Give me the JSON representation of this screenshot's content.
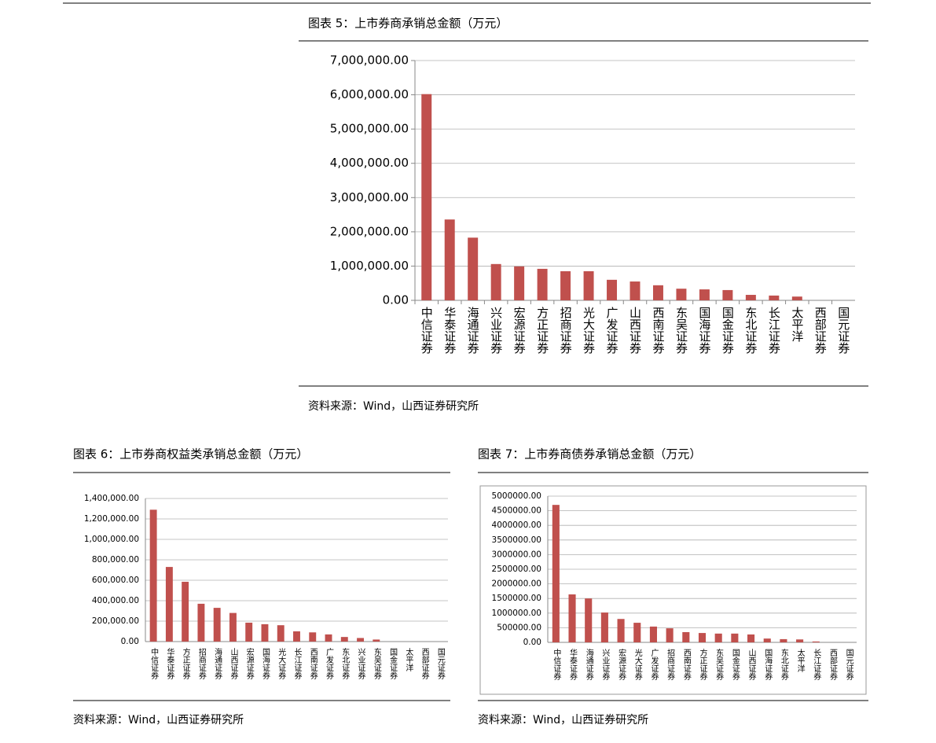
{
  "chart_data": [
    {
      "type": "bar",
      "title": "图表 5：上市券商承销总金额（万元）",
      "source": "资料来源：Wind，山西证券研究所",
      "color": "#c0504d",
      "categories": [
        "中信证券",
        "华泰证券",
        "海通证券",
        "兴业证券",
        "宏源证券",
        "方正证券",
        "招商证券",
        "光大证券",
        "广发证券",
        "山西证券",
        "西南证券",
        "东吴证券",
        "国海证券",
        "国金证券",
        "东北证券",
        "长江证券",
        "太平洋",
        "西部证券",
        "国元证券"
      ],
      "values": [
        6020000,
        2360000,
        1830000,
        1060000,
        990000,
        920000,
        850000,
        850000,
        600000,
        550000,
        440000,
        340000,
        320000,
        300000,
        160000,
        140000,
        110000,
        0,
        0
      ],
      "ylim": [
        0,
        7000000
      ],
      "yticks": [
        {
          "value": 0,
          "label": "0.00"
        },
        {
          "value": 1000000,
          "label": "1,000,000.00"
        },
        {
          "value": 2000000,
          "label": "2,000,000.00"
        },
        {
          "value": 3000000,
          "label": "3,000,000.00"
        },
        {
          "value": 4000000,
          "label": "4,000,000.00"
        },
        {
          "value": 5000000,
          "label": "5,000,000.00"
        },
        {
          "value": 6000000,
          "label": "6,000,000.00"
        },
        {
          "value": 7000000,
          "label": "7,000,000.00"
        }
      ],
      "grid": true
    },
    {
      "type": "bar",
      "title": "图表 6：上市券商权益类承销总金额（万元）",
      "source": "资料来源：Wind，山西证券研究所",
      "color": "#c0504d",
      "categories": [
        "中信证券",
        "华泰证券",
        "方正证券",
        "招商证券",
        "海通证券",
        "山西证券",
        "宏源证券",
        "国海证券",
        "光大证券",
        "长江证券",
        "西南证券",
        "广发证券",
        "东北证券",
        "兴业证券",
        "东吴证券",
        "国金证券",
        "太平洋",
        "西部证券",
        "国元证券"
      ],
      "values": [
        1290000,
        730000,
        585000,
        370000,
        330000,
        280000,
        185000,
        170000,
        160000,
        100000,
        90000,
        70000,
        45000,
        35000,
        20000,
        0,
        0,
        0,
        0
      ],
      "ylim": [
        0,
        1400000
      ],
      "yticks": [
        {
          "value": 0,
          "label": "0.00"
        },
        {
          "value": 200000,
          "label": "200,000.00"
        },
        {
          "value": 400000,
          "label": "400,000.00"
        },
        {
          "value": 600000,
          "label": "600,000.00"
        },
        {
          "value": 800000,
          "label": "800,000.00"
        },
        {
          "value": 1000000,
          "label": "1,000,000.00"
        },
        {
          "value": 1200000,
          "label": "1,200,000.00"
        },
        {
          "value": 1400000,
          "label": "1,400,000.00"
        }
      ],
      "grid": true
    },
    {
      "type": "bar",
      "title": "图表 7：上市券商债券承销总金额（万元）",
      "source": "资料来源：Wind，山西证券研究所",
      "color": "#c0504d",
      "categories": [
        "中信证券",
        "华泰证券",
        "海通证券",
        "兴业证券",
        "宏源证券",
        "光大证券",
        "广发证券",
        "招商证券",
        "西南证券",
        "方正证券",
        "东吴证券",
        "国金证券",
        "山西证券",
        "国海证券",
        "东北证券",
        "太平洋",
        "长江证券",
        "西部证券",
        "国元证券"
      ],
      "values": [
        4700000,
        1640000,
        1500000,
        1020000,
        800000,
        670000,
        540000,
        480000,
        350000,
        320000,
        300000,
        300000,
        270000,
        130000,
        110000,
        100000,
        30000,
        0,
        0
      ],
      "ylim": [
        0,
        5000000
      ],
      "yticks": [
        {
          "value": 0,
          "label": "0.00"
        },
        {
          "value": 500000,
          "label": "500000.00"
        },
        {
          "value": 1000000,
          "label": "1000000.00"
        },
        {
          "value": 1500000,
          "label": "1500000.00"
        },
        {
          "value": 2000000,
          "label": "2000000.00"
        },
        {
          "value": 2500000,
          "label": "2500000.00"
        },
        {
          "value": 3000000,
          "label": "3000000.00"
        },
        {
          "value": 3500000,
          "label": "3500000.00"
        },
        {
          "value": 4000000,
          "label": "4000000.00"
        },
        {
          "value": 4500000,
          "label": "4500000.00"
        },
        {
          "value": 5000000,
          "label": "5000000.00"
        }
      ],
      "grid": true
    }
  ]
}
